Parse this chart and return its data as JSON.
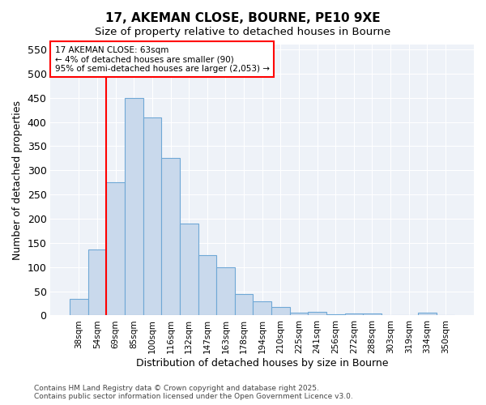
{
  "title1": "17, AKEMAN CLOSE, BOURNE, PE10 9XE",
  "title2": "Size of property relative to detached houses in Bourne",
  "xlabel": "Distribution of detached houses by size in Bourne",
  "ylabel": "Number of detached properties",
  "categories": [
    "38sqm",
    "54sqm",
    "69sqm",
    "85sqm",
    "100sqm",
    "116sqm",
    "132sqm",
    "147sqm",
    "163sqm",
    "178sqm",
    "194sqm",
    "210sqm",
    "225sqm",
    "241sqm",
    "256sqm",
    "272sqm",
    "288sqm",
    "303sqm",
    "319sqm",
    "334sqm",
    "350sqm"
  ],
  "values": [
    35,
    137,
    275,
    450,
    410,
    325,
    190,
    125,
    100,
    45,
    30,
    18,
    6,
    8,
    3,
    4,
    4,
    1,
    0,
    5,
    0
  ],
  "bar_color": "#c9d9ec",
  "bar_edge_color": "#6fa8d6",
  "red_line_x": 1.5,
  "annotation_title": "17 AKEMAN CLOSE: 63sqm",
  "annotation_line1": "← 4% of detached houses are smaller (90)",
  "annotation_line2": "95% of semi-detached houses are larger (2,053) →",
  "ylim": [
    0,
    560
  ],
  "yticks": [
    0,
    50,
    100,
    150,
    200,
    250,
    300,
    350,
    400,
    450,
    500,
    550
  ],
  "bg_color": "#eef2f8",
  "footer1": "Contains HM Land Registry data © Crown copyright and database right 2025.",
  "footer2": "Contains public sector information licensed under the Open Government Licence v3.0."
}
